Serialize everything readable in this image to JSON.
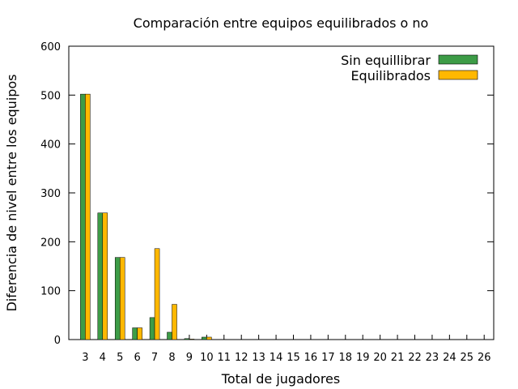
{
  "chart_data": {
    "type": "bar",
    "title": "Comparación entre equipos equilibrados o no",
    "xlabel": "Total de jugadores",
    "ylabel": "Diferencia de nivel entre los equipos",
    "ylim": [
      0,
      600
    ],
    "yticks": [
      0,
      100,
      200,
      300,
      400,
      500,
      600
    ],
    "categories": [
      "3",
      "4",
      "5",
      "6",
      "7",
      "8",
      "9",
      "10",
      "11",
      "12",
      "13",
      "14",
      "15",
      "16",
      "17",
      "18",
      "19",
      "20",
      "21",
      "22",
      "23",
      "24",
      "25",
      "26"
    ],
    "series": [
      {
        "name": "Sin equillibrar",
        "color": "#3d9c47",
        "values": [
          502,
          259,
          168,
          24,
          45,
          15,
          2,
          5,
          0,
          0,
          0,
          0,
          0,
          0,
          0,
          0,
          0,
          0,
          0,
          0,
          0,
          0,
          0,
          0
        ]
      },
      {
        "name": "Equilibrados",
        "color": "#ffb800",
        "values": [
          502,
          259,
          168,
          24,
          186,
          72,
          1,
          5,
          0,
          0,
          0,
          0,
          0,
          0,
          0,
          0,
          0,
          0,
          0,
          0,
          0,
          0,
          0,
          0
        ]
      }
    ],
    "legend_position": "top-right",
    "grid": false
  }
}
